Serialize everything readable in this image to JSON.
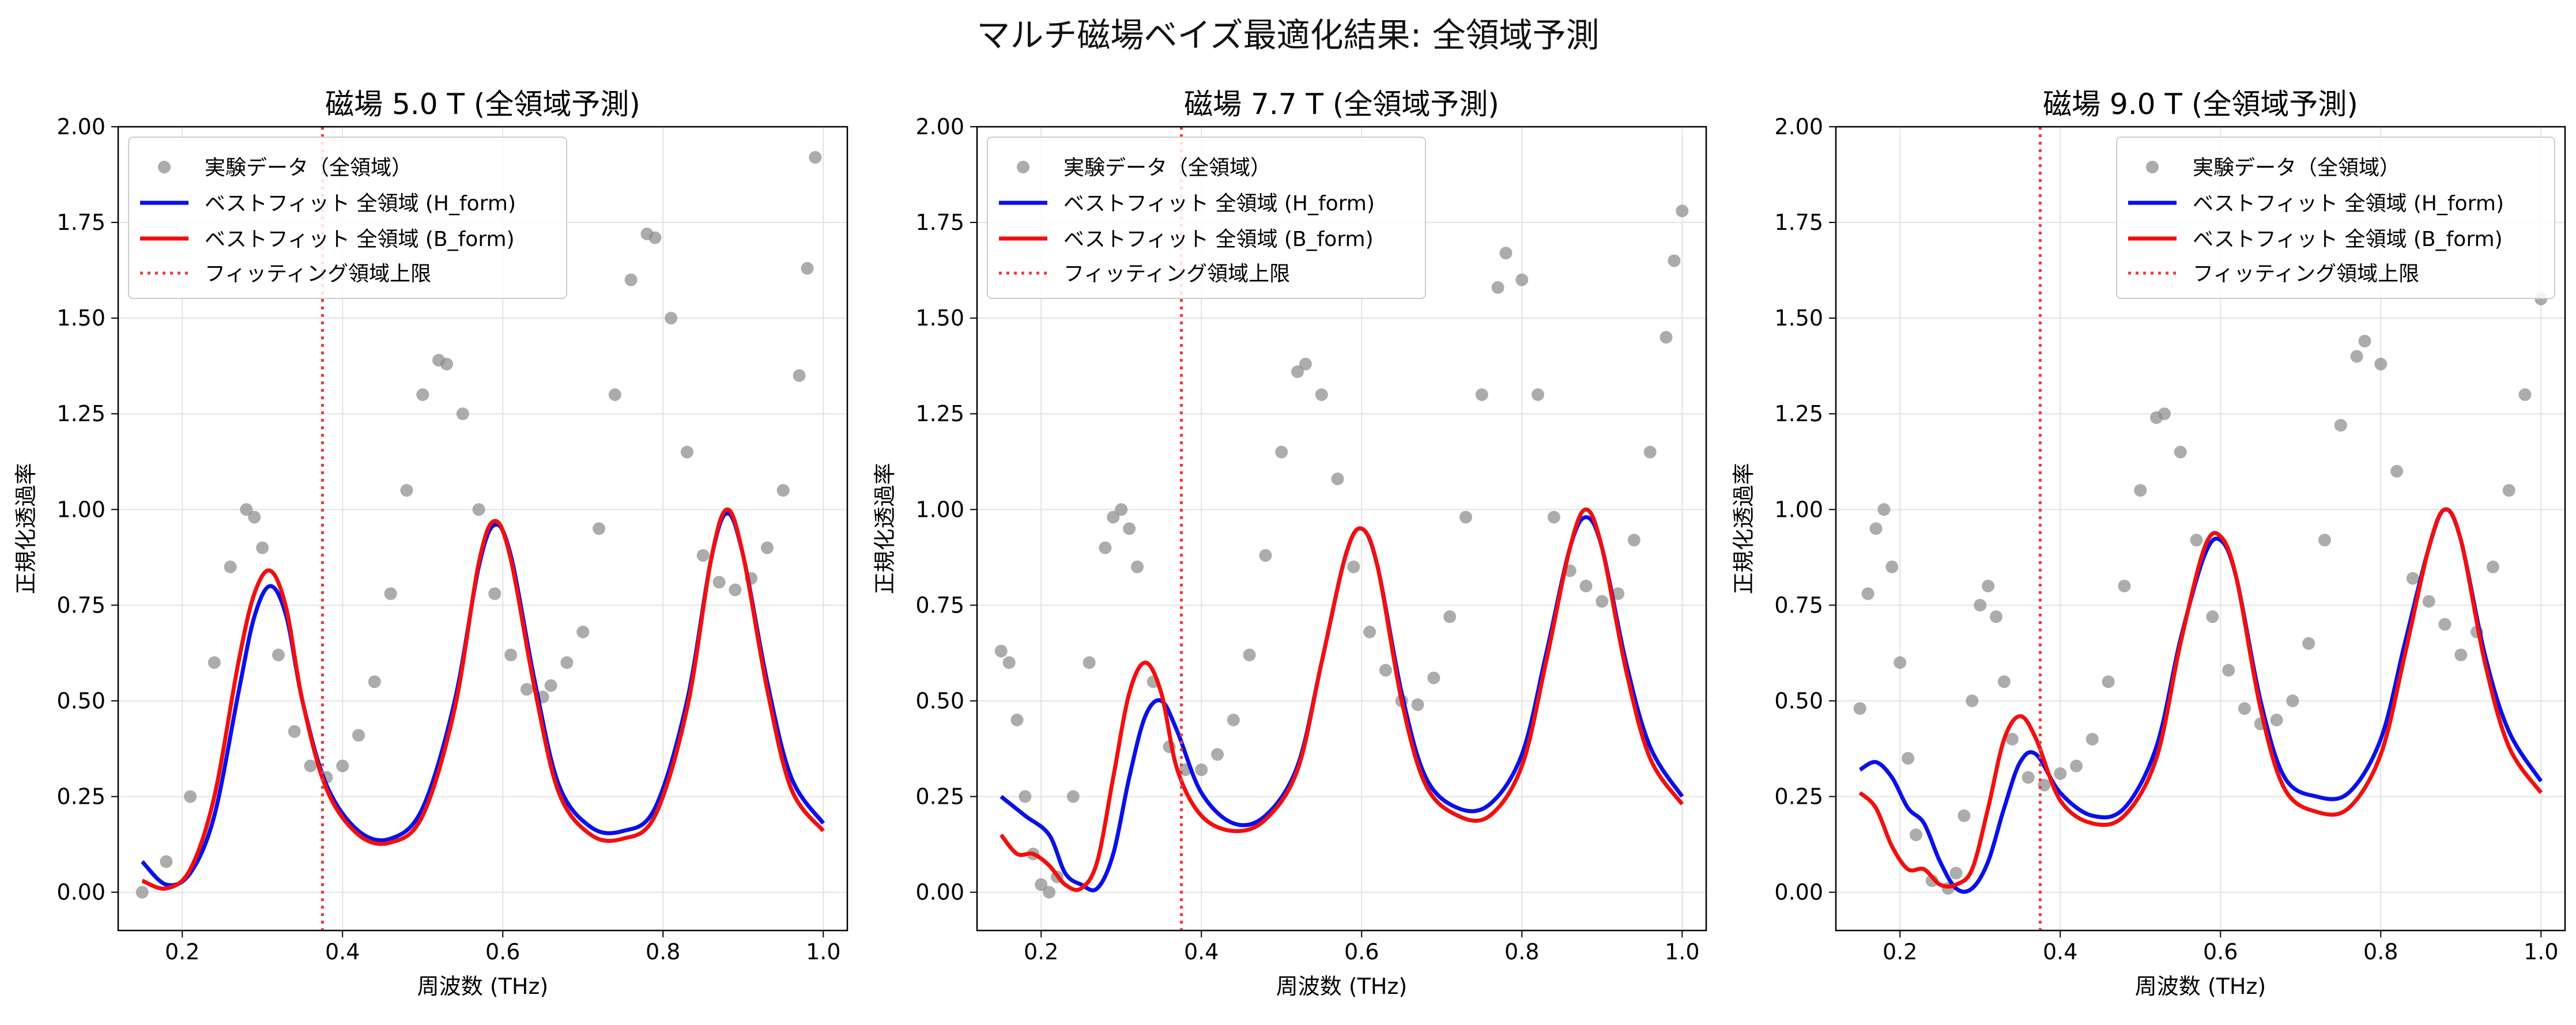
{
  "figure": {
    "title": "マルチ磁場ベイズ最適化結果: 全領域予測"
  },
  "style": {
    "exp_color": "#8c8c8c",
    "h_color": "#0a10e8",
    "b_color": "#f20f0f",
    "limit_color": "#f23a3a",
    "grid_color": "#e3e3e3"
  },
  "chart_data": [
    {
      "type": "scatter+line",
      "title": "磁場 5.0 T (全領域予測)",
      "xlabel": "周波数 (THz)",
      "ylabel": "正規化透過率",
      "xlim": [
        0.12,
        1.03
      ],
      "ylim": [
        -0.1,
        2.0
      ],
      "xticks": [
        "0.2",
        "0.4",
        "0.6",
        "0.8",
        "1.0"
      ],
      "yticks": [
        "0.00",
        "0.25",
        "0.50",
        "0.75",
        "1.00",
        "1.25",
        "1.50",
        "1.75",
        "2.00"
      ],
      "legend_position": "upper-left",
      "legend": [
        "実験データ（全領域）",
        "ベストフィット 全領域 (H_form)",
        "ベストフィット 全領域 (B_form)",
        "フィッティング領域上限"
      ],
      "fit_limit_x": 0.375,
      "experiment": {
        "x": [
          0.15,
          0.18,
          0.21,
          0.24,
          0.26,
          0.28,
          0.29,
          0.3,
          0.32,
          0.34,
          0.36,
          0.38,
          0.4,
          0.42,
          0.44,
          0.46,
          0.48,
          0.5,
          0.52,
          0.53,
          0.55,
          0.57,
          0.59,
          0.61,
          0.63,
          0.65,
          0.66,
          0.68,
          0.7,
          0.72,
          0.74,
          0.76,
          0.78,
          0.79,
          0.81,
          0.83,
          0.85,
          0.87,
          0.89,
          0.91,
          0.93,
          0.95,
          0.97,
          0.98,
          0.99
        ],
        "y": [
          0.0,
          0.08,
          0.25,
          0.6,
          0.85,
          1.0,
          0.98,
          0.9,
          0.62,
          0.42,
          0.33,
          0.3,
          0.33,
          0.41,
          0.55,
          0.78,
          1.05,
          1.3,
          1.39,
          1.38,
          1.25,
          1.0,
          0.78,
          0.62,
          0.53,
          0.51,
          0.54,
          0.6,
          0.68,
          0.95,
          1.3,
          1.6,
          1.72,
          1.71,
          1.5,
          1.15,
          0.88,
          0.81,
          0.79,
          0.82,
          0.9,
          1.05,
          1.35,
          1.63,
          1.92
        ]
      },
      "fit_H": {
        "x": [
          0.15,
          0.18,
          0.21,
          0.24,
          0.27,
          0.29,
          0.31,
          0.33,
          0.35,
          0.38,
          0.42,
          0.46,
          0.5,
          0.54,
          0.57,
          0.59,
          0.61,
          0.64,
          0.67,
          0.71,
          0.75,
          0.79,
          0.83,
          0.86,
          0.88,
          0.9,
          0.93,
          0.96,
          1.0
        ],
        "y": [
          0.08,
          0.02,
          0.05,
          0.2,
          0.52,
          0.72,
          0.8,
          0.72,
          0.5,
          0.28,
          0.16,
          0.14,
          0.22,
          0.5,
          0.85,
          0.96,
          0.88,
          0.55,
          0.28,
          0.17,
          0.16,
          0.22,
          0.5,
          0.87,
          0.99,
          0.88,
          0.55,
          0.3,
          0.18
        ]
      },
      "fit_B": {
        "x": [
          0.15,
          0.18,
          0.21,
          0.24,
          0.27,
          0.29,
          0.31,
          0.33,
          0.35,
          0.38,
          0.42,
          0.46,
          0.5,
          0.54,
          0.57,
          0.59,
          0.61,
          0.64,
          0.67,
          0.71,
          0.75,
          0.79,
          0.83,
          0.86,
          0.88,
          0.9,
          0.93,
          0.96,
          1.0
        ],
        "y": [
          0.03,
          0.01,
          0.06,
          0.25,
          0.6,
          0.78,
          0.84,
          0.74,
          0.5,
          0.27,
          0.15,
          0.13,
          0.2,
          0.48,
          0.86,
          0.97,
          0.87,
          0.53,
          0.26,
          0.15,
          0.14,
          0.2,
          0.48,
          0.87,
          1.0,
          0.88,
          0.53,
          0.27,
          0.16
        ]
      }
    },
    {
      "type": "scatter+line",
      "title": "磁場 7.7 T (全領域予測)",
      "xlabel": "周波数 (THz)",
      "ylabel": "正規化透過率",
      "xlim": [
        0.12,
        1.03
      ],
      "ylim": [
        -0.1,
        2.0
      ],
      "xticks": [
        "0.2",
        "0.4",
        "0.6",
        "0.8",
        "1.0"
      ],
      "yticks": [
        "0.00",
        "0.25",
        "0.50",
        "0.75",
        "1.00",
        "1.25",
        "1.50",
        "1.75",
        "2.00"
      ],
      "legend_position": "upper-left",
      "legend": [
        "実験データ（全領域）",
        "ベストフィット 全領域 (H_form)",
        "ベストフィット 全領域 (B_form)",
        "フィッティング領域上限"
      ],
      "fit_limit_x": 0.375,
      "experiment": {
        "x": [
          0.15,
          0.16,
          0.17,
          0.18,
          0.19,
          0.2,
          0.21,
          0.22,
          0.24,
          0.26,
          0.28,
          0.29,
          0.3,
          0.31,
          0.32,
          0.34,
          0.36,
          0.38,
          0.4,
          0.42,
          0.44,
          0.46,
          0.48,
          0.5,
          0.52,
          0.53,
          0.55,
          0.57,
          0.59,
          0.61,
          0.63,
          0.65,
          0.67,
          0.69,
          0.71,
          0.73,
          0.75,
          0.77,
          0.78,
          0.8,
          0.82,
          0.84,
          0.86,
          0.88,
          0.9,
          0.92,
          0.94,
          0.96,
          0.98,
          0.99,
          1.0
        ],
        "y": [
          0.63,
          0.6,
          0.45,
          0.25,
          0.1,
          0.02,
          0.0,
          0.04,
          0.25,
          0.6,
          0.9,
          0.98,
          1.0,
          0.95,
          0.85,
          0.55,
          0.38,
          0.32,
          0.32,
          0.36,
          0.45,
          0.62,
          0.88,
          1.15,
          1.36,
          1.38,
          1.3,
          1.08,
          0.85,
          0.68,
          0.58,
          0.5,
          0.49,
          0.56,
          0.72,
          0.98,
          1.3,
          1.58,
          1.67,
          1.6,
          1.3,
          0.98,
          0.84,
          0.8,
          0.76,
          0.78,
          0.92,
          1.15,
          1.45,
          1.65,
          1.78
        ]
      },
      "fit_H": {
        "x": [
          0.15,
          0.18,
          0.21,
          0.23,
          0.25,
          0.27,
          0.29,
          0.31,
          0.33,
          0.35,
          0.37,
          0.4,
          0.44,
          0.48,
          0.52,
          0.55,
          0.58,
          0.6,
          0.62,
          0.65,
          0.68,
          0.72,
          0.76,
          0.8,
          0.83,
          0.86,
          0.88,
          0.9,
          0.93,
          0.96,
          1.0
        ],
        "y": [
          0.25,
          0.2,
          0.15,
          0.05,
          0.02,
          0.01,
          0.1,
          0.3,
          0.46,
          0.5,
          0.42,
          0.26,
          0.18,
          0.2,
          0.33,
          0.6,
          0.88,
          0.95,
          0.85,
          0.52,
          0.3,
          0.22,
          0.23,
          0.36,
          0.62,
          0.9,
          0.98,
          0.9,
          0.6,
          0.38,
          0.25
        ]
      },
      "fit_B": {
        "x": [
          0.15,
          0.17,
          0.19,
          0.21,
          0.23,
          0.25,
          0.27,
          0.29,
          0.31,
          0.33,
          0.35,
          0.37,
          0.4,
          0.44,
          0.48,
          0.52,
          0.55,
          0.58,
          0.6,
          0.62,
          0.65,
          0.68,
          0.72,
          0.76,
          0.8,
          0.83,
          0.86,
          0.88,
          0.9,
          0.93,
          0.96,
          1.0
        ],
        "y": [
          0.15,
          0.1,
          0.1,
          0.07,
          0.02,
          0.01,
          0.08,
          0.3,
          0.52,
          0.6,
          0.52,
          0.32,
          0.2,
          0.16,
          0.19,
          0.32,
          0.6,
          0.88,
          0.95,
          0.85,
          0.5,
          0.28,
          0.2,
          0.2,
          0.33,
          0.6,
          0.9,
          1.0,
          0.9,
          0.58,
          0.35,
          0.23
        ]
      }
    },
    {
      "type": "scatter+line",
      "title": "磁場 9.0 T (全領域予測)",
      "xlabel": "周波数 (THz)",
      "ylabel": "正規化透過率",
      "xlim": [
        0.12,
        1.03
      ],
      "ylim": [
        -0.1,
        2.0
      ],
      "xticks": [
        "0.2",
        "0.4",
        "0.6",
        "0.8",
        "1.0"
      ],
      "yticks": [
        "0.00",
        "0.25",
        "0.50",
        "0.75",
        "1.00",
        "1.25",
        "1.50",
        "1.75",
        "2.00"
      ],
      "legend_position": "upper-right",
      "legend": [
        "実験データ（全領域）",
        "ベストフィット 全領域 (H_form)",
        "ベストフィット 全領域 (B_form)",
        "フィッティング領域上限"
      ],
      "fit_limit_x": 0.375,
      "experiment": {
        "x": [
          0.15,
          0.16,
          0.17,
          0.18,
          0.19,
          0.2,
          0.21,
          0.22,
          0.24,
          0.26,
          0.27,
          0.28,
          0.29,
          0.3,
          0.31,
          0.32,
          0.33,
          0.34,
          0.36,
          0.38,
          0.4,
          0.42,
          0.44,
          0.46,
          0.48,
          0.5,
          0.52,
          0.53,
          0.55,
          0.57,
          0.59,
          0.61,
          0.63,
          0.65,
          0.67,
          0.69,
          0.71,
          0.73,
          0.75,
          0.77,
          0.78,
          0.8,
          0.82,
          0.84,
          0.86,
          0.88,
          0.9,
          0.92,
          0.94,
          0.96,
          0.98,
          1.0
        ],
        "y": [
          0.48,
          0.78,
          0.95,
          1.0,
          0.85,
          0.6,
          0.35,
          0.15,
          0.03,
          0.01,
          0.05,
          0.2,
          0.5,
          0.75,
          0.8,
          0.72,
          0.55,
          0.4,
          0.3,
          0.28,
          0.31,
          0.33,
          0.4,
          0.55,
          0.8,
          1.05,
          1.24,
          1.25,
          1.15,
          0.92,
          0.72,
          0.58,
          0.48,
          0.44,
          0.45,
          0.5,
          0.65,
          0.92,
          1.22,
          1.4,
          1.44,
          1.38,
          1.1,
          0.82,
          0.76,
          0.7,
          0.62,
          0.68,
          0.85,
          1.05,
          1.3,
          1.55
        ]
      },
      "fit_H": {
        "x": [
          0.15,
          0.17,
          0.19,
          0.21,
          0.23,
          0.25,
          0.27,
          0.29,
          0.31,
          0.33,
          0.35,
          0.37,
          0.4,
          0.44,
          0.48,
          0.52,
          0.55,
          0.58,
          0.6,
          0.62,
          0.65,
          0.68,
          0.72,
          0.76,
          0.8,
          0.83,
          0.86,
          0.88,
          0.9,
          0.93,
          0.96,
          1.0
        ],
        "y": [
          0.32,
          0.34,
          0.3,
          0.22,
          0.18,
          0.08,
          0.01,
          0.01,
          0.08,
          0.22,
          0.34,
          0.36,
          0.26,
          0.2,
          0.22,
          0.38,
          0.66,
          0.88,
          0.92,
          0.82,
          0.5,
          0.3,
          0.25,
          0.26,
          0.4,
          0.65,
          0.9,
          1.0,
          0.92,
          0.62,
          0.42,
          0.29
        ]
      },
      "fit_B": {
        "x": [
          0.15,
          0.17,
          0.19,
          0.21,
          0.23,
          0.25,
          0.27,
          0.29,
          0.31,
          0.33,
          0.35,
          0.37,
          0.4,
          0.44,
          0.48,
          0.52,
          0.55,
          0.58,
          0.6,
          0.62,
          0.65,
          0.68,
          0.72,
          0.76,
          0.8,
          0.83,
          0.86,
          0.88,
          0.9,
          0.93,
          0.96,
          1.0
        ],
        "y": [
          0.26,
          0.22,
          0.12,
          0.06,
          0.06,
          0.02,
          0.02,
          0.06,
          0.22,
          0.4,
          0.46,
          0.4,
          0.24,
          0.18,
          0.2,
          0.35,
          0.65,
          0.9,
          0.93,
          0.82,
          0.48,
          0.27,
          0.21,
          0.22,
          0.36,
          0.62,
          0.9,
          1.0,
          0.92,
          0.6,
          0.38,
          0.26
        ]
      }
    }
  ]
}
